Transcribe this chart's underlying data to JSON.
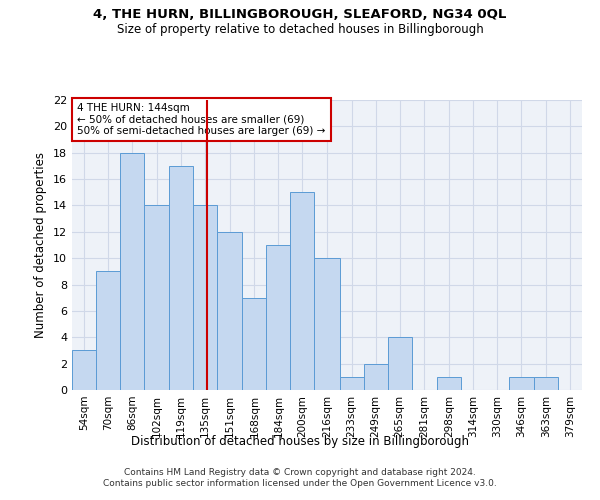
{
  "title1": "4, THE HURN, BILLINGBOROUGH, SLEAFORD, NG34 0QL",
  "title2": "Size of property relative to detached houses in Billingborough",
  "xlabel": "Distribution of detached houses by size in Billingborough",
  "ylabel": "Number of detached properties",
  "footer1": "Contains HM Land Registry data © Crown copyright and database right 2024.",
  "footer2": "Contains public sector information licensed under the Open Government Licence v3.0.",
  "annotation_line1": "4 THE HURN: 144sqm",
  "annotation_line2": "← 50% of detached houses are smaller (69)",
  "annotation_line3": "50% of semi-detached houses are larger (69) →",
  "bar_color": "#c5d8f0",
  "bar_edge_color": "#5b9bd5",
  "vline_color": "#cc0000",
  "vline_x": 144,
  "bins": [
    54,
    70,
    86,
    102,
    119,
    135,
    151,
    168,
    184,
    200,
    216,
    233,
    249,
    265,
    281,
    298,
    314,
    330,
    346,
    363,
    379,
    395
  ],
  "bar_heights": [
    3,
    9,
    18,
    14,
    17,
    14,
    12,
    7,
    11,
    15,
    10,
    1,
    2,
    4,
    0,
    1,
    0,
    0,
    1,
    1,
    0
  ],
  "ylim": [
    0,
    22
  ],
  "yticks": [
    0,
    2,
    4,
    6,
    8,
    10,
    12,
    14,
    16,
    18,
    20,
    22
  ],
  "grid_color": "#d0d8e8",
  "bg_color": "#eef2f8",
  "fig_width": 6.0,
  "fig_height": 5.0,
  "dpi": 100
}
